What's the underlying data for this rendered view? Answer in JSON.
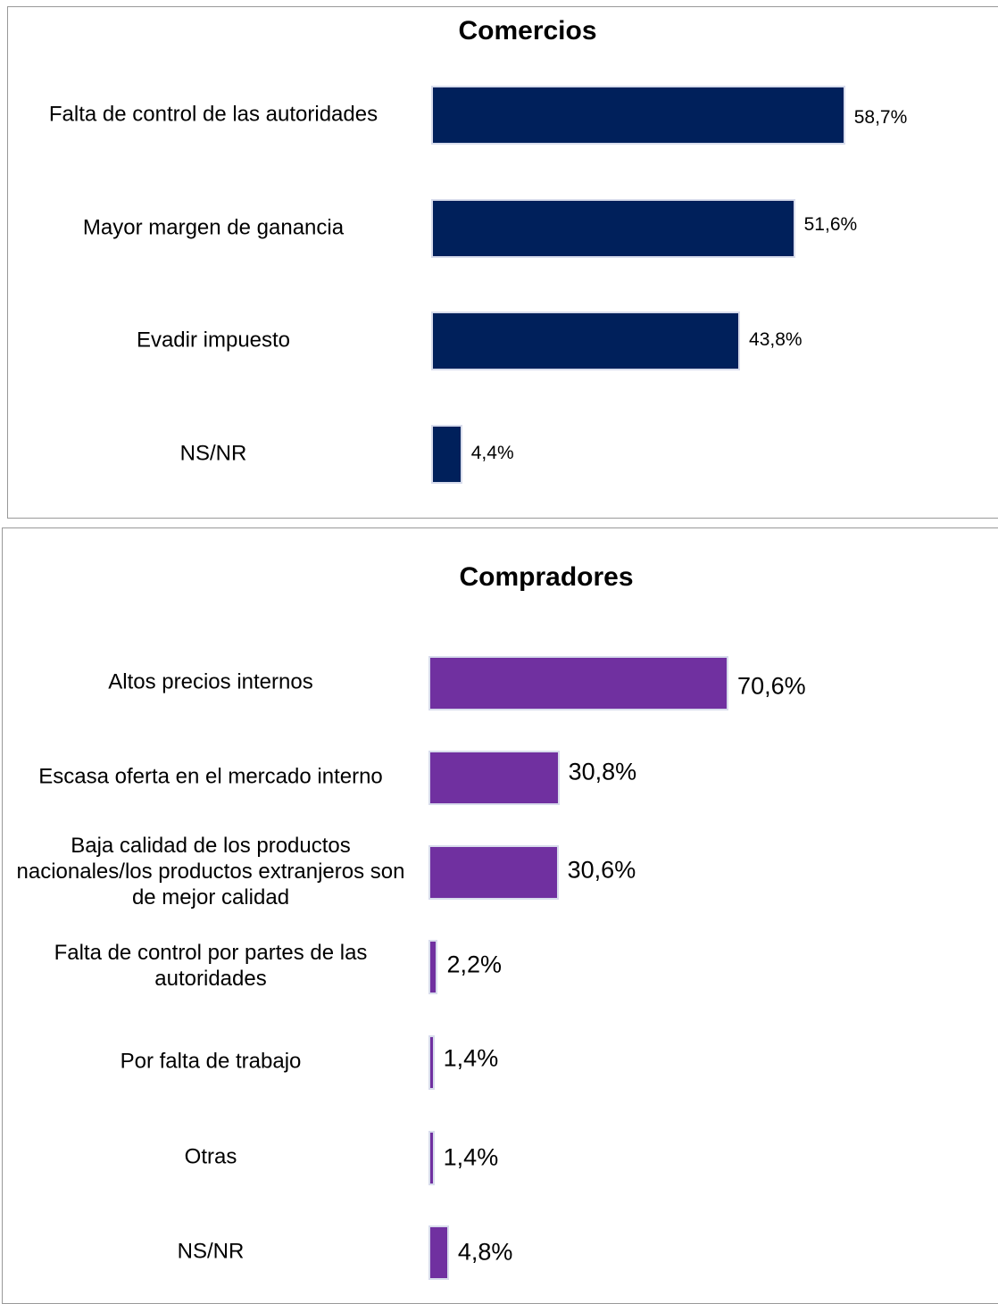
{
  "chart_data": [
    {
      "type": "bar",
      "orientation": "horizontal",
      "title": "Comercios",
      "color": "#00205b",
      "categories": [
        "Falta de control de las autoridades",
        "Mayor margen de ganancia",
        "Evadir impuesto",
        "NS/NR"
      ],
      "values": [
        58.7,
        51.6,
        43.8,
        4.4
      ],
      "value_labels": [
        "58,7%",
        "51,6%",
        "43,8%",
        "4,4%"
      ]
    },
    {
      "type": "bar",
      "orientation": "horizontal",
      "title": "Compradores",
      "color": "#7030a0",
      "categories": [
        "Altos precios internos",
        "Escasa oferta en el mercado interno",
        "Baja calidad de los productos nacionales/los productos extranjeros son de mejor calidad",
        "Falta de control por partes de las autoridades",
        "Por falta de trabajo",
        "Otras",
        "NS/NR"
      ],
      "values": [
        70.6,
        30.8,
        30.6,
        2.2,
        1.4,
        1.4,
        4.8
      ],
      "value_labels": [
        "70,6%",
        "30,8%",
        "30,6%",
        "2,2%",
        "1,4%",
        "1,4%",
        "4,8%"
      ]
    }
  ]
}
